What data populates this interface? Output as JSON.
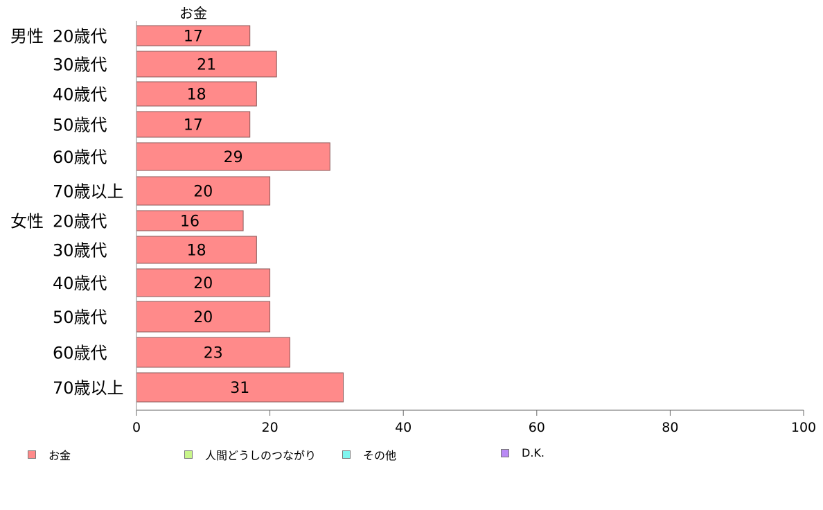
{
  "chart_data": {
    "type": "bar",
    "orientation": "horizontal",
    "series_header": "お金",
    "groups": [
      {
        "name": "男性",
        "categories": [
          "20歳代",
          "30歳代",
          "40歳代",
          "50歳代",
          "60歳代",
          "70歳以上"
        ]
      },
      {
        "name": "女性",
        "categories": [
          "20歳代",
          "30歳代",
          "40歳代",
          "50歳代",
          "60歳代",
          "70歳以上"
        ]
      }
    ],
    "series": [
      {
        "name": "お金",
        "color": "#ff8a8a",
        "values": [
          17,
          21,
          18,
          17,
          29,
          20,
          16,
          18,
          20,
          20,
          23,
          31
        ]
      }
    ],
    "xlim": [
      0,
      100
    ],
    "xticks": [
      "0",
      "20",
      "40",
      "60",
      "80",
      "100"
    ],
    "grid": false,
    "legend_position": "bottom",
    "legend": [
      {
        "label": "お金",
        "color": "#ff8a8a"
      },
      {
        "label": "人間どうしのつながり",
        "color": "#c8f58a"
      },
      {
        "label": "その他",
        "color": "#7ff5ef"
      },
      {
        "label": "D.K.",
        "color": "#b98af5"
      }
    ]
  }
}
